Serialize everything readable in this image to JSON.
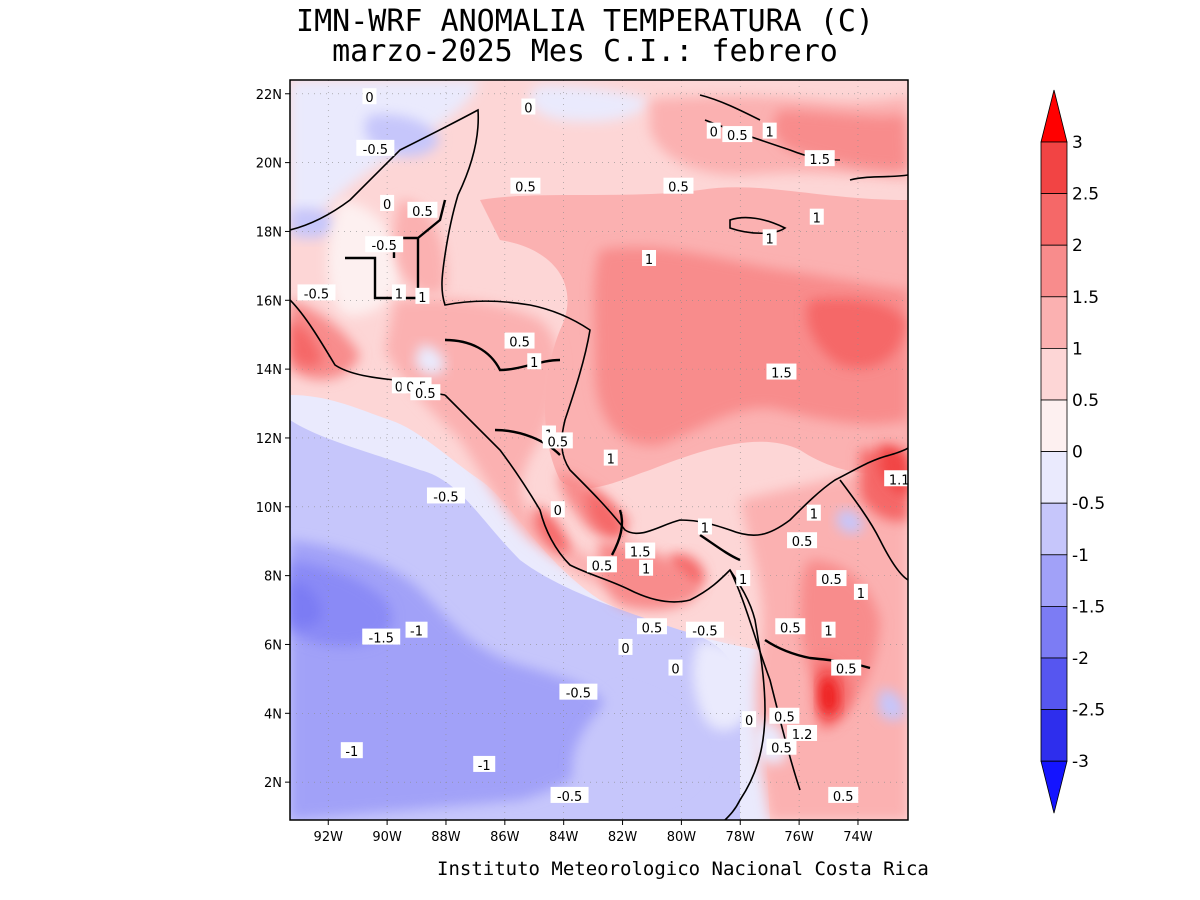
{
  "title": {
    "line1": "IMN-WRF  ANOMALIA TEMPERATURA (C)",
    "line2": "marzo-2025 Mes C.I.: febrero"
  },
  "credit": "Instituto Meteorologico Nacional Costa Rica",
  "map": {
    "lon_range": [
      -93.3,
      -72.3
    ],
    "lat_range": [
      0.9,
      22.4
    ],
    "lat_ticks": [
      "22N",
      "20N",
      "18N",
      "16N",
      "14N",
      "12N",
      "10N",
      "8N",
      "6N",
      "4N",
      "2N"
    ],
    "lat_tick_values": [
      22,
      20,
      18,
      16,
      14,
      12,
      10,
      8,
      6,
      4,
      2
    ],
    "lon_ticks": [
      "92W",
      "90W",
      "88W",
      "86W",
      "84W",
      "82W",
      "80W",
      "78W",
      "76W",
      "74W"
    ],
    "lon_tick_values": [
      -92,
      -90,
      -88,
      -86,
      -84,
      -82,
      -80,
      -78,
      -76,
      -74
    ],
    "grid": true
  },
  "colorbar": {
    "labels": [
      "3",
      "2.5",
      "2",
      "1.5",
      "1",
      "0.5",
      "0",
      "-0.5",
      "-1",
      "-1.5",
      "-2",
      "-2.5",
      "-3"
    ],
    "colors_top_to_bottom": [
      "#ee1c1c",
      "#f24444",
      "#f56868",
      "#f88c8c",
      "#fbb1b1",
      "#fdd6d6",
      "#fdf0f0",
      "#eaeafd",
      "#c6c6fb",
      "#a1a1f8",
      "#7c7cf4",
      "#5656f0",
      "#2e2eed",
      "#1010ff"
    ],
    "top_arrow_color": "#ff0000",
    "bottom_arrow_color": "#1414ff"
  },
  "contour_labels": [
    {
      "t": "0",
      "lon": -90.6,
      "lat": 21.9
    },
    {
      "t": "0",
      "lon": -85.2,
      "lat": 21.6
    },
    {
      "t": "0",
      "lon": -78.9,
      "lat": 20.9
    },
    {
      "t": "0.5",
      "lon": -78.1,
      "lat": 20.8
    },
    {
      "t": "1",
      "lon": -77.0,
      "lat": 20.9
    },
    {
      "t": "-0.5",
      "lon": -90.4,
      "lat": 20.4
    },
    {
      "t": "1.5",
      "lon": -75.3,
      "lat": 20.1
    },
    {
      "t": "0.5",
      "lon": -85.3,
      "lat": 19.3
    },
    {
      "t": "0.5",
      "lon": -80.1,
      "lat": 19.3
    },
    {
      "t": "0",
      "lon": -90.0,
      "lat": 18.8
    },
    {
      "t": "0.5",
      "lon": -88.8,
      "lat": 18.6
    },
    {
      "t": "1",
      "lon": -75.4,
      "lat": 18.4
    },
    {
      "t": "-0.5",
      "lon": -90.1,
      "lat": 17.6
    },
    {
      "t": "1",
      "lon": -77.0,
      "lat": 17.8
    },
    {
      "t": "1",
      "lon": -81.1,
      "lat": 17.2
    },
    {
      "t": "-0.5",
      "lon": -92.4,
      "lat": 16.2
    },
    {
      "t": "1",
      "lon": -89.6,
      "lat": 16.2
    },
    {
      "t": "1",
      "lon": -88.8,
      "lat": 16.1
    },
    {
      "t": "0.5",
      "lon": -85.5,
      "lat": 14.8
    },
    {
      "t": "1",
      "lon": -85.0,
      "lat": 14.2
    },
    {
      "t": "1.5",
      "lon": -76.6,
      "lat": 13.9
    },
    {
      "t": "0",
      "lon": -89.6,
      "lat": 13.5
    },
    {
      "t": "0.5",
      "lon": -89.0,
      "lat": 13.5
    },
    {
      "t": "0.5",
      "lon": -88.7,
      "lat": 13.3
    },
    {
      "t": "1",
      "lon": -84.5,
      "lat": 12.1
    },
    {
      "t": "0.5",
      "lon": -84.2,
      "lat": 11.9
    },
    {
      "t": "1",
      "lon": -82.4,
      "lat": 11.4
    },
    {
      "t": "1.1",
      "lon": -72.6,
      "lat": 10.8
    },
    {
      "t": "-0.5",
      "lon": -88.0,
      "lat": 10.3
    },
    {
      "t": "0",
      "lon": -84.2,
      "lat": 9.9
    },
    {
      "t": "1",
      "lon": -75.5,
      "lat": 9.8
    },
    {
      "t": "1",
      "lon": -79.2,
      "lat": 9.4
    },
    {
      "t": "0.5",
      "lon": -75.9,
      "lat": 9.0
    },
    {
      "t": "1.5",
      "lon": -81.4,
      "lat": 8.7
    },
    {
      "t": "0.5",
      "lon": -82.7,
      "lat": 8.3
    },
    {
      "t": "1",
      "lon": -81.2,
      "lat": 8.2
    },
    {
      "t": "1",
      "lon": -77.9,
      "lat": 7.9
    },
    {
      "t": "0.5",
      "lon": -74.9,
      "lat": 7.9
    },
    {
      "t": "1",
      "lon": -73.9,
      "lat": 7.5
    },
    {
      "t": "-1.5",
      "lon": -90.2,
      "lat": 6.2
    },
    {
      "t": "-1",
      "lon": -89.0,
      "lat": 6.4
    },
    {
      "t": "0.5",
      "lon": -81.0,
      "lat": 6.5
    },
    {
      "t": "-0.5",
      "lon": -79.2,
      "lat": 6.4
    },
    {
      "t": "0.5",
      "lon": -76.3,
      "lat": 6.5
    },
    {
      "t": "1",
      "lon": -75.0,
      "lat": 6.4
    },
    {
      "t": "0",
      "lon": -81.9,
      "lat": 5.9
    },
    {
      "t": "0",
      "lon": -80.2,
      "lat": 5.3
    },
    {
      "t": "0.5",
      "lon": -74.4,
      "lat": 5.3
    },
    {
      "t": "-0.5",
      "lon": -83.5,
      "lat": 4.6
    },
    {
      "t": "0.5",
      "lon": -76.5,
      "lat": 3.9
    },
    {
      "t": "0",
      "lon": -77.7,
      "lat": 3.8
    },
    {
      "t": "1.2",
      "lon": -75.9,
      "lat": 3.4
    },
    {
      "t": "0.5",
      "lon": -76.6,
      "lat": 3.0
    },
    {
      "t": "-1",
      "lon": -91.2,
      "lat": 2.9
    },
    {
      "t": "-1",
      "lon": -86.7,
      "lat": 2.5
    },
    {
      "t": "0.5",
      "lon": -74.5,
      "lat": 1.6
    },
    {
      "t": "-0.5",
      "lon": -83.8,
      "lat": 1.6
    }
  ]
}
